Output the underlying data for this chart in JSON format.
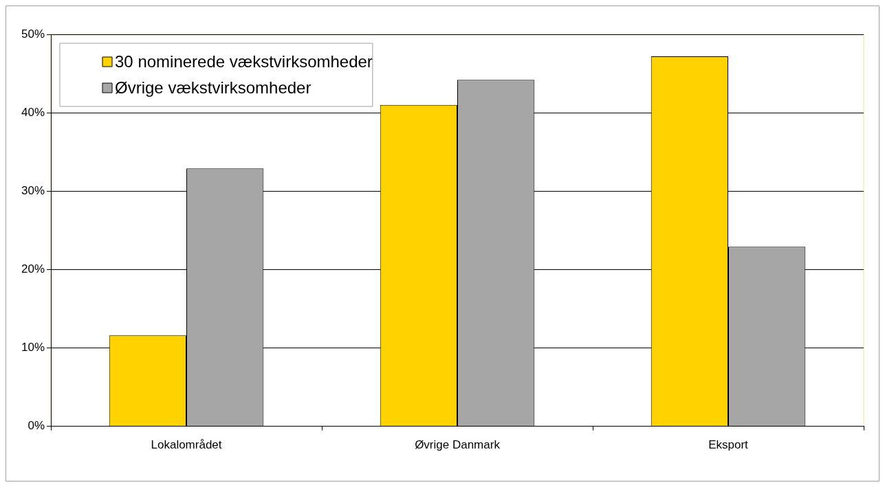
{
  "chart_data": {
    "type": "bar",
    "categories": [
      "Lokalområdet",
      "Øvrige Danmark",
      "Eksport"
    ],
    "series": [
      {
        "name": "30 nominerede vækstvirksomheder",
        "color": "#ffd200",
        "values": [
          11.6,
          41,
          47.2
        ]
      },
      {
        "name": "Øvrige vækstvirksomheder",
        "color": "#a6a6a6",
        "values": [
          32.9,
          44.2,
          22.9
        ]
      }
    ],
    "ylim": [
      0,
      50
    ],
    "yticks": [
      {
        "value": 0,
        "label": "0%"
      },
      {
        "value": 10,
        "label": "10%"
      },
      {
        "value": 20,
        "label": "20%"
      },
      {
        "value": 30,
        "label": "30%"
      },
      {
        "value": 40,
        "label": "40%"
      },
      {
        "value": 50,
        "label": "50%"
      }
    ],
    "grid": "y",
    "legend": "top left"
  }
}
